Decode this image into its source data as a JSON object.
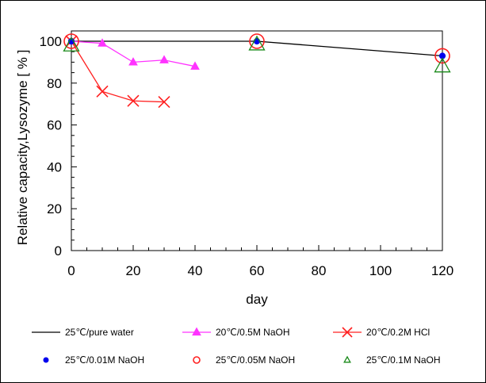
{
  "chart_data": {
    "type": "line",
    "title": "",
    "xlabel": "day",
    "ylabel": "Relative capacity,Lysozyme [ % ]",
    "xlim": [
      0,
      120
    ],
    "ylim": [
      0,
      100
    ],
    "x_ticks": [
      0,
      20,
      40,
      60,
      80,
      100,
      120
    ],
    "y_ticks": [
      0,
      20,
      40,
      60,
      80,
      100
    ],
    "x_tick_labels": [
      "0",
      "20",
      "40",
      "60",
      "80",
      "100",
      "120"
    ],
    "y_tick_labels": [
      "0",
      "20",
      "40",
      "60",
      "80",
      "100"
    ],
    "grid": false,
    "legend_position": "bottom",
    "series": [
      {
        "name": "25℃/pure water",
        "color": "#000000",
        "marker": "none",
        "line": true,
        "points": [
          [
            0,
            100
          ],
          [
            60,
            100
          ],
          [
            120,
            93
          ]
        ]
      },
      {
        "name": "20℃/0.5M NaOH",
        "color": "#ff33ff",
        "marker": "triangle-filled",
        "line": true,
        "points": [
          [
            0,
            100
          ],
          [
            10,
            99
          ],
          [
            20,
            90
          ],
          [
            30,
            91
          ],
          [
            40,
            88
          ]
        ]
      },
      {
        "name": "20℃/0.2M HCl",
        "color": "#ff2020",
        "marker": "x",
        "line": true,
        "points": [
          [
            0,
            100
          ],
          [
            10,
            76
          ],
          [
            20,
            71.5
          ],
          [
            30,
            71
          ]
        ]
      },
      {
        "name": "25℃/0.01M NaOH",
        "color": "#0000ee",
        "marker": "circle-filled",
        "line": false,
        "points": [
          [
            0,
            100
          ],
          [
            60,
            100
          ],
          [
            120,
            93
          ]
        ]
      },
      {
        "name": "25℃/0.05M NaOH",
        "color": "#ff2020",
        "marker": "circle-open",
        "line": false,
        "points": [
          [
            0,
            100
          ],
          [
            60,
            100
          ],
          [
            120,
            93
          ]
        ]
      },
      {
        "name": "25℃/0.1M NaOH",
        "color": "#1a8a1a",
        "marker": "triangle-open",
        "line": false,
        "points": [
          [
            0,
            98
          ],
          [
            60,
            98.5
          ],
          [
            120,
            88
          ]
        ]
      }
    ]
  }
}
